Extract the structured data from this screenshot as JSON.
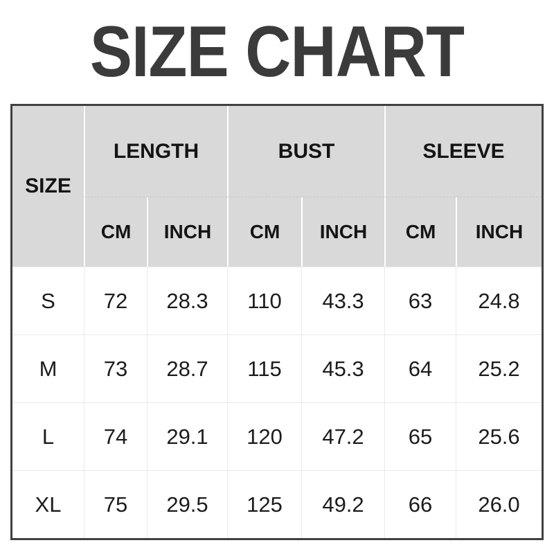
{
  "title": "SIZE CHART",
  "colors": {
    "title_text": "#3b3b3b",
    "header_bg": "#d9d9d9",
    "header_text": "#141414",
    "body_text": "#1c1c1c",
    "table_border": "#414141",
    "grid_line": "#e9e9e9",
    "header_divider": "#ffffff"
  },
  "table": {
    "size_header": "SIZE",
    "groups": [
      {
        "label": "LENGTH",
        "sub": [
          "CM",
          "INCH"
        ]
      },
      {
        "label": "BUST",
        "sub": [
          "CM",
          "INCH"
        ]
      },
      {
        "label": "SLEEVE",
        "sub": [
          "CM",
          "INCH"
        ]
      }
    ],
    "rows": [
      {
        "size": "S",
        "values": [
          "72",
          "28.3",
          "110",
          "43.3",
          "63",
          "24.8"
        ]
      },
      {
        "size": "M",
        "values": [
          "73",
          "28.7",
          "115",
          "45.3",
          "64",
          "25.2"
        ]
      },
      {
        "size": "L",
        "values": [
          "74",
          "29.1",
          "120",
          "47.2",
          "65",
          "25.6"
        ]
      },
      {
        "size": "XL",
        "values": [
          "75",
          "29.5",
          "125",
          "49.2",
          "66",
          "26.0"
        ]
      }
    ]
  },
  "chart_data": {
    "type": "table",
    "title": "SIZE CHART",
    "columns": [
      "SIZE",
      "LENGTH CM",
      "LENGTH INCH",
      "BUST CM",
      "BUST INCH",
      "SLEEVE CM",
      "SLEEVE INCH"
    ],
    "rows": [
      [
        "S",
        72,
        28.3,
        110,
        43.3,
        63,
        24.8
      ],
      [
        "M",
        73,
        28.7,
        115,
        45.3,
        64,
        25.2
      ],
      [
        "L",
        74,
        29.1,
        120,
        47.2,
        65,
        25.6
      ],
      [
        "XL",
        75,
        29.5,
        125,
        49.2,
        66,
        26.0
      ]
    ]
  }
}
